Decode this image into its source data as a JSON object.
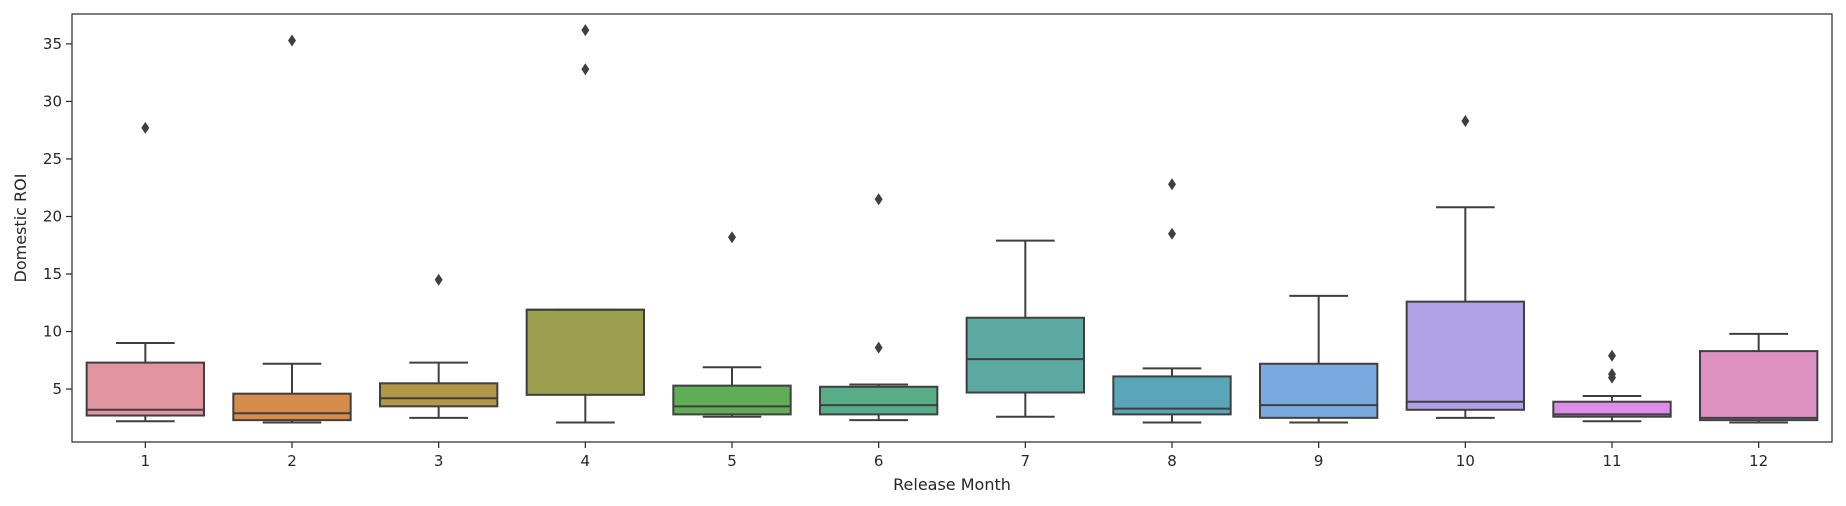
{
  "chart_data": {
    "type": "box",
    "xlabel": "Release Month",
    "ylabel": "Domestic ROI",
    "ylim": [
      0.4,
      37.6
    ],
    "yticks": [
      5,
      10,
      15,
      20,
      25,
      30,
      35
    ],
    "grid": false,
    "categories": [
      "1",
      "2",
      "3",
      "4",
      "5",
      "6",
      "7",
      "8",
      "9",
      "10",
      "11",
      "12"
    ],
    "boxes": [
      {
        "category": "1",
        "whisker_low": 2.2,
        "q1": 2.7,
        "median": 3.2,
        "q3": 7.3,
        "whisker_high": 9.0,
        "outliers": [
          27.7
        ],
        "color": "#e1959f"
      },
      {
        "category": "2",
        "whisker_low": 2.1,
        "q1": 2.3,
        "median": 2.9,
        "q3": 4.6,
        "whisker_high": 7.2,
        "outliers": [
          35.3
        ],
        "color": "#d88c4b"
      },
      {
        "category": "3",
        "whisker_low": 2.5,
        "q1": 3.5,
        "median": 4.2,
        "q3": 5.5,
        "whisker_high": 7.3,
        "outliers": [
          14.5
        ],
        "color": "#b19747"
      },
      {
        "category": "4",
        "whisker_low": 2.1,
        "q1": 4.5,
        "median": 11.9,
        "q3": 11.9,
        "whisker_high": 11.9,
        "outliers": [
          32.8,
          36.2
        ],
        "color": "#9aa04d"
      },
      {
        "category": "5",
        "whisker_low": 2.6,
        "q1": 2.8,
        "median": 3.5,
        "q3": 5.3,
        "whisker_high": 6.9,
        "outliers": [
          18.2
        ],
        "color": "#5fae55"
      },
      {
        "category": "6",
        "whisker_low": 2.3,
        "q1": 2.8,
        "median": 3.6,
        "q3": 5.2,
        "whisker_high": 5.4,
        "outliers": [
          8.6,
          21.5
        ],
        "color": "#56ad88"
      },
      {
        "category": "7",
        "whisker_low": 2.6,
        "q1": 4.7,
        "median": 7.6,
        "q3": 11.2,
        "whisker_high": 17.9,
        "outliers": [],
        "color": "#5ba9a0"
      },
      {
        "category": "8",
        "whisker_low": 2.1,
        "q1": 2.8,
        "median": 3.3,
        "q3": 6.1,
        "whisker_high": 6.8,
        "outliers": [
          18.5,
          22.8
        ],
        "color": "#5aa5b8"
      },
      {
        "category": "9",
        "whisker_low": 2.1,
        "q1": 2.5,
        "median": 3.6,
        "q3": 7.2,
        "whisker_high": 13.1,
        "outliers": [],
        "color": "#78aadf"
      },
      {
        "category": "10",
        "whisker_low": 2.5,
        "q1": 3.2,
        "median": 3.9,
        "q3": 12.6,
        "whisker_high": 20.8,
        "outliers": [
          28.3
        ],
        "color": "#b1a2e6"
      },
      {
        "category": "11",
        "whisker_low": 2.2,
        "q1": 2.6,
        "median": 2.8,
        "q3": 3.9,
        "whisker_high": 4.4,
        "outliers": [
          6.0,
          6.3,
          7.9
        ],
        "color": "#da8ee8"
      },
      {
        "category": "12",
        "whisker_low": 2.1,
        "q1": 2.3,
        "median": 2.5,
        "q3": 8.3,
        "whisker_high": 9.8,
        "outliers": [],
        "color": "#dc91c2"
      }
    ]
  }
}
